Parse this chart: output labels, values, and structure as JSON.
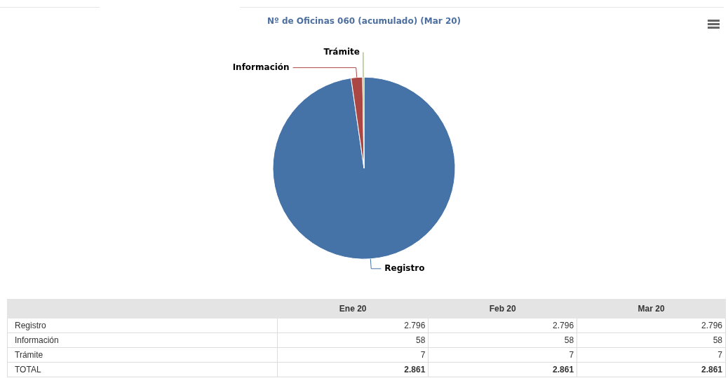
{
  "chart_data": [
    {
      "type": "pie",
      "title": "Nº de Oficinas 060 (acumulado) (Mar 20)",
      "categories": [
        "Registro",
        "Información",
        "Trámite"
      ],
      "values": [
        97.73,
        2.03,
        0.24
      ],
      "colors": [
        "#4572a7",
        "#aa4643",
        "#89a54e"
      ]
    },
    {
      "type": "other",
      "categories": [
        "Ene 20",
        "Feb 20",
        "Mar 20"
      ],
      "series": [
        {
          "name": "Registro",
          "values": [
            2796,
            2796,
            2796
          ],
          "value_labels": [
            "2.796",
            "2.796",
            "2.796"
          ]
        },
        {
          "name": "Información",
          "values": [
            58,
            58,
            58
          ],
          "value_labels": [
            "58",
            "58",
            "58"
          ]
        },
        {
          "name": "Trámite",
          "values": [
            7,
            7,
            7
          ],
          "value_labels": [
            "7",
            "7",
            "7"
          ]
        },
        {
          "name": "TOTAL",
          "values": [
            2861,
            2861,
            2861
          ],
          "value_labels": [
            "2.861",
            "2.861",
            "2.861"
          ]
        }
      ]
    }
  ]
}
